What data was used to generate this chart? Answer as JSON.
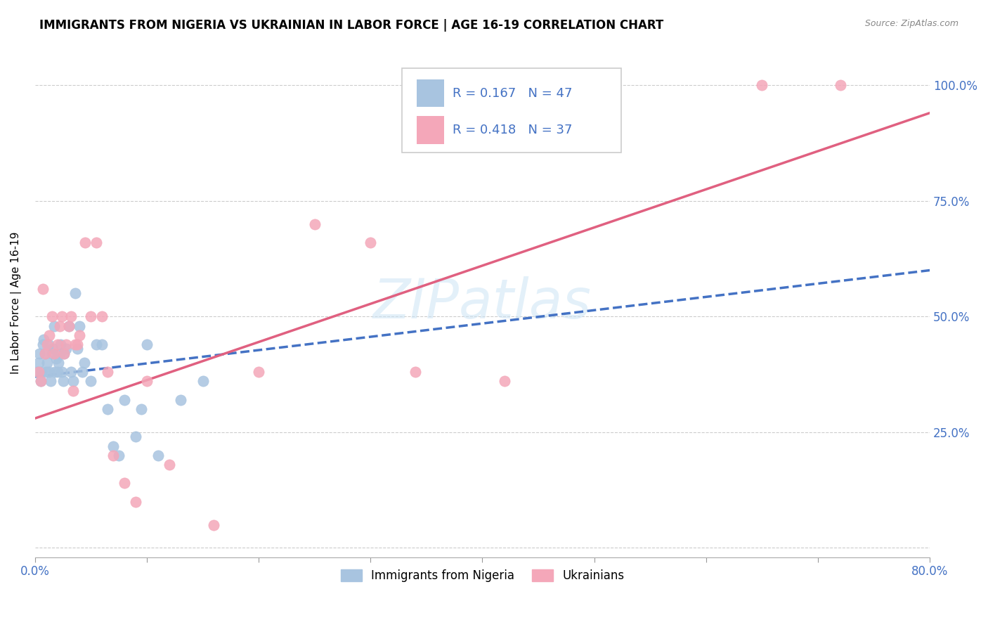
{
  "title": "IMMIGRANTS FROM NIGERIA VS UKRAINIAN IN LABOR FORCE | AGE 16-19 CORRELATION CHART",
  "source": "Source: ZipAtlas.com",
  "ylabel": "In Labor Force | Age 16-19",
  "xlim": [
    0.0,
    0.8
  ],
  "ylim": [
    -0.02,
    1.08
  ],
  "nigeria_color": "#a8c4e0",
  "ukraine_color": "#f4a7b9",
  "nigeria_trend_color": "#4472c4",
  "ukraine_trend_color": "#e06080",
  "legend_R_nigeria": "0.167",
  "legend_N_nigeria": "47",
  "legend_R_ukraine": "0.418",
  "legend_N_ukraine": "37",
  "nigeria_trend_x0": 0.0,
  "nigeria_trend_y0": 0.37,
  "nigeria_trend_x1": 0.8,
  "nigeria_trend_y1": 0.6,
  "ukraine_trend_x0": 0.0,
  "ukraine_trend_y0": 0.28,
  "ukraine_trend_x1": 0.8,
  "ukraine_trend_y1": 0.94,
  "nigeria_points_x": [
    0.002,
    0.003,
    0.004,
    0.005,
    0.006,
    0.007,
    0.008,
    0.009,
    0.01,
    0.011,
    0.012,
    0.013,
    0.014,
    0.015,
    0.016,
    0.017,
    0.018,
    0.019,
    0.02,
    0.021,
    0.022,
    0.023,
    0.024,
    0.025,
    0.026,
    0.028,
    0.03,
    0.032,
    0.034,
    0.036,
    0.038,
    0.04,
    0.042,
    0.044,
    0.05,
    0.055,
    0.06,
    0.065,
    0.07,
    0.075,
    0.08,
    0.09,
    0.095,
    0.1,
    0.11,
    0.13,
    0.15
  ],
  "nigeria_points_y": [
    0.38,
    0.4,
    0.42,
    0.36,
    0.38,
    0.44,
    0.45,
    0.42,
    0.38,
    0.4,
    0.44,
    0.38,
    0.36,
    0.42,
    0.43,
    0.48,
    0.38,
    0.41,
    0.38,
    0.4,
    0.42,
    0.44,
    0.38,
    0.36,
    0.42,
    0.43,
    0.48,
    0.38,
    0.36,
    0.55,
    0.43,
    0.48,
    0.38,
    0.4,
    0.36,
    0.44,
    0.44,
    0.3,
    0.22,
    0.2,
    0.32,
    0.24,
    0.3,
    0.44,
    0.2,
    0.32,
    0.36
  ],
  "ukraine_points_x": [
    0.003,
    0.005,
    0.007,
    0.009,
    0.011,
    0.013,
    0.015,
    0.017,
    0.02,
    0.022,
    0.024,
    0.026,
    0.028,
    0.03,
    0.032,
    0.034,
    0.036,
    0.038,
    0.04,
    0.045,
    0.05,
    0.055,
    0.06,
    0.065,
    0.07,
    0.08,
    0.09,
    0.1,
    0.12,
    0.16,
    0.2,
    0.25,
    0.3,
    0.34,
    0.42,
    0.65,
    0.72
  ],
  "ukraine_points_y": [
    0.38,
    0.36,
    0.56,
    0.42,
    0.44,
    0.46,
    0.5,
    0.42,
    0.44,
    0.48,
    0.5,
    0.42,
    0.44,
    0.48,
    0.5,
    0.34,
    0.44,
    0.44,
    0.46,
    0.66,
    0.5,
    0.66,
    0.5,
    0.38,
    0.2,
    0.14,
    0.1,
    0.36,
    0.18,
    0.05,
    0.38,
    0.7,
    0.66,
    0.38,
    0.36,
    1.0,
    1.0
  ]
}
